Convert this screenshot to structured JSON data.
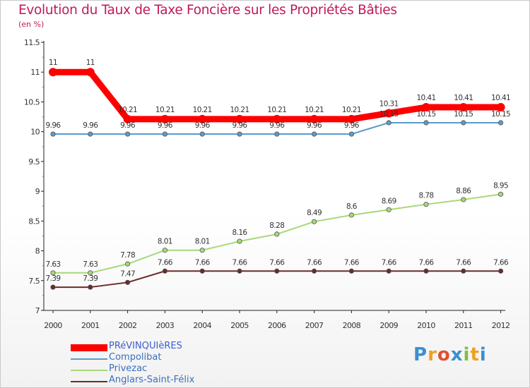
{
  "chart_data": {
    "type": "line",
    "title": "Evolution du Taux de Taxe Foncière sur les Propriétés Bâties",
    "subtitle": "(en %)",
    "x": [
      "2000",
      "2001",
      "2002",
      "2003",
      "2004",
      "2005",
      "2006",
      "2007",
      "2008",
      "2009",
      "2010",
      "2011",
      "2012"
    ],
    "ylim": [
      7,
      11.5
    ],
    "yticks": [
      "7",
      "7.5",
      "8",
      "8.5",
      "9",
      "9.5",
      "10",
      "10.5",
      "11",
      "11.5"
    ],
    "grid": false,
    "legend_position": "bottom-left",
    "series": [
      {
        "name": "PRéVINQUIèRES",
        "color": "#ff0000",
        "values": [
          11,
          11,
          10.21,
          10.21,
          10.21,
          10.21,
          10.21,
          10.21,
          10.21,
          10.31,
          10.41,
          10.41,
          10.41
        ],
        "labels": [
          "11",
          "11",
          "10.21",
          "10.21",
          "10.21",
          "10.21",
          "10.21",
          "10.21",
          "10.21",
          "10.31",
          "10.41",
          "10.41",
          "10.41"
        ]
      },
      {
        "name": "Compolibat",
        "color": "#5b9bc8",
        "values": [
          9.96,
          9.96,
          9.96,
          9.96,
          9.96,
          9.96,
          9.96,
          9.96,
          9.96,
          10.15,
          10.15,
          10.15,
          10.15
        ],
        "labels": [
          "9.96",
          "9.96",
          "9.96",
          "9.96",
          "9.96",
          "9.96",
          "9.96",
          "9.96",
          "9.96",
          "10.15",
          "10.15",
          "10.15",
          "10.15"
        ]
      },
      {
        "name": "Privezac",
        "color": "#a8d878",
        "values": [
          7.63,
          7.63,
          7.78,
          8.01,
          8.01,
          8.16,
          8.28,
          8.49,
          8.6,
          8.69,
          8.78,
          8.86,
          8.95
        ],
        "labels": [
          "7.63",
          "7.63",
          "7.78",
          "8.01",
          "8.01",
          "8.16",
          "8.28",
          "8.49",
          "8.6",
          "8.69",
          "8.78",
          "8.86",
          "8.95"
        ]
      },
      {
        "name": "Anglars-Saint-Félix",
        "color": "#6b2a2a",
        "values": [
          7.39,
          7.39,
          7.47,
          7.66,
          7.66,
          7.66,
          7.66,
          7.66,
          7.66,
          7.66,
          7.66,
          7.66,
          7.66
        ],
        "labels": [
          "7.39",
          "7.39",
          "7.47",
          "7.66",
          "7.66",
          "7.66",
          "7.66",
          "7.66",
          "7.66",
          "7.66",
          "7.66",
          "7.66",
          "7.66"
        ]
      }
    ]
  },
  "logo": {
    "letters": [
      "P",
      "r",
      "o",
      "x",
      "i",
      "t",
      "i"
    ],
    "colors": [
      "#3a8fd0",
      "#f0a020",
      "#e05030",
      "#3a8fd0",
      "#80c040",
      "#f0a020",
      "#3a8fd0"
    ]
  }
}
